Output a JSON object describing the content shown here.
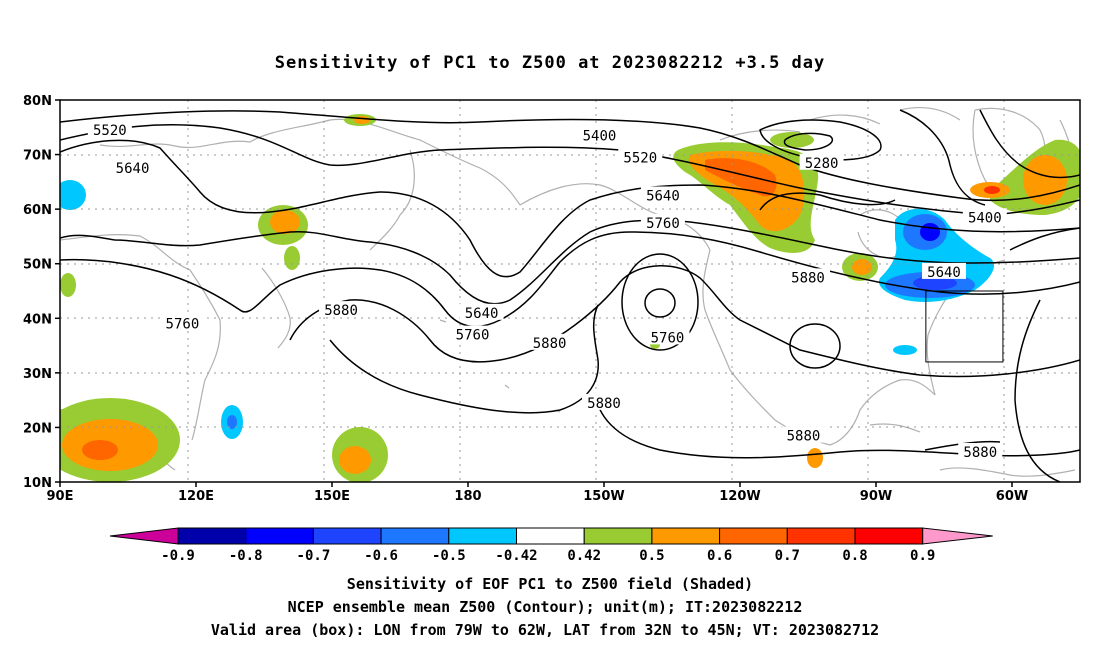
{
  "title": "Sensitivity of PC1 to Z500 at 2023082212 +3.5 day",
  "map": {
    "lat_labels": [
      "80N",
      "70N",
      "60N",
      "50N",
      "40N",
      "30N",
      "20N",
      "10N"
    ],
    "lon_labels": [
      "90E",
      "120E",
      "150E",
      "180",
      "150W",
      "120W",
      "90W",
      "60W"
    ],
    "contour_labels": [
      {
        "text": "5520",
        "lat": 74.5,
        "lon": 101
      },
      {
        "text": "5640",
        "lat": 67.5,
        "lon": 106
      },
      {
        "text": "5400",
        "lat": 73.5,
        "lon": -151
      },
      {
        "text": "5520",
        "lat": 69.5,
        "lon": -142
      },
      {
        "text": "5640",
        "lat": 62.5,
        "lon": -137
      },
      {
        "text": "5760",
        "lat": 57.5,
        "lon": -137
      },
      {
        "text": "5280",
        "lat": 68.5,
        "lon": -102
      },
      {
        "text": "5400",
        "lat": 58.5,
        "lon": -66
      },
      {
        "text": "5640",
        "lat": 48.5,
        "lon": -75
      },
      {
        "text": "5880",
        "lat": 47.5,
        "lon": -105
      },
      {
        "text": "5880",
        "lat": 41.5,
        "lon": 152
      },
      {
        "text": "5760",
        "lat": 39,
        "lon": 117
      },
      {
        "text": "5640",
        "lat": 41,
        "lon": -177
      },
      {
        "text": "5760",
        "lat": 37,
        "lon": -179
      },
      {
        "text": "5880",
        "lat": 35.5,
        "lon": -162
      },
      {
        "text": "5760",
        "lat": 36.5,
        "lon": -136
      },
      {
        "text": "5880",
        "lat": 24.5,
        "lon": -150
      },
      {
        "text": "5880",
        "lat": 18.5,
        "lon": -106
      },
      {
        "text": "5880",
        "lat": 15.5,
        "lon": -67
      }
    ],
    "valid_box": {
      "lon_min": -79,
      "lon_max": -62,
      "lat_min": 32,
      "lat_max": 45
    }
  },
  "colorbar": {
    "labels": [
      "-0.9",
      "-0.8",
      "-0.7",
      "-0.6",
      "-0.5",
      "-0.42",
      "0.42",
      "0.5",
      "0.6",
      "0.7",
      "0.8",
      "0.9"
    ],
    "colors": [
      "#0000aa",
      "#0000ff",
      "#1e44ff",
      "#1e78ff",
      "#00c8ff",
      "#ffffff",
      "#99cc33",
      "#ff9900",
      "#ff6600",
      "#ff3300",
      "#ff0000"
    ],
    "low_arrow_color": "#cc0099",
    "high_arrow_color": "#ff99cc"
  },
  "captions": [
    "Sensitivity of EOF PC1 to Z500 field (Shaded)",
    "NCEP ensemble mean Z500 (Contour); unit(m); IT:2023082212",
    "Valid area (box): LON from 79W to 62W, LAT from 32N to 45N; VT: 2023082712"
  ]
}
